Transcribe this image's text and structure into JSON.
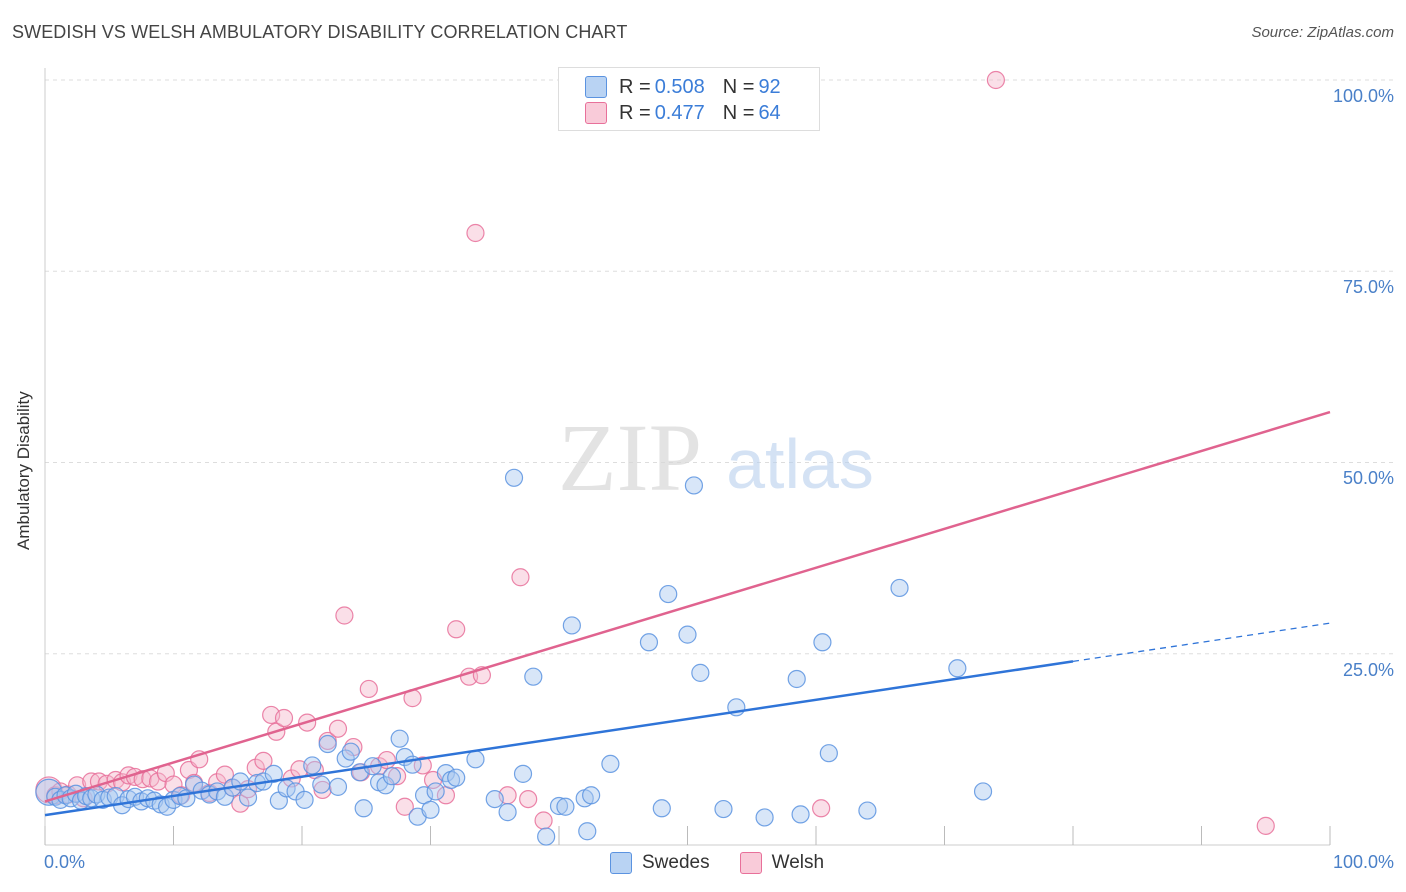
{
  "header": {
    "title": "SWEDISH VS WELSH AMBULATORY DISABILITY CORRELATION CHART",
    "source": "Source: ZipAtlas.com"
  },
  "watermark": {
    "zip": "ZIP",
    "atlas": "atlas"
  },
  "colors": {
    "swedes": "#5b93e0",
    "swedes_fill": "#a8c8f0",
    "welsh": "#e8709a",
    "welsh_fill": "#f4b8cc",
    "axis_text": "#4a80c8",
    "grid": "#dddddd"
  },
  "legend": {
    "rows": [
      {
        "r_label": "R =",
        "r_value": "0.508",
        "n_label": "N =",
        "n_value": "92"
      },
      {
        "r_label": "R =",
        "r_value": "0.477",
        "n_label": "N =",
        "n_value": "64"
      }
    ],
    "bottom": [
      "Swedes",
      "Welsh"
    ]
  },
  "chart_data": {
    "type": "scatter",
    "title": "SWEDISH VS WELSH AMBULATORY DISABILITY CORRELATION CHART",
    "xlabel": "",
    "ylabel": "Ambulatory Disability",
    "xlim": [
      0,
      100
    ],
    "ylim": [
      0,
      100
    ],
    "x_tick_labels": [
      "0.0%",
      "100.0%"
    ],
    "y_tick_labels": [
      "100.0%",
      "75.0%",
      "50.0%",
      "25.0%"
    ],
    "grid": true,
    "legend_position": "top-center",
    "series": [
      {
        "name": "Swedes",
        "r": 0.508,
        "n": 92,
        "trend": {
          "x0": 0,
          "y0": 3.9,
          "x1": 80,
          "y1": 24.0,
          "dashed_to_x": 100,
          "dashed_to_y": 29.0
        },
        "points": [
          [
            0.3,
            6.9
          ],
          [
            0.8,
            6.3
          ],
          [
            1.2,
            5.9
          ],
          [
            1.6,
            6.5
          ],
          [
            2.0,
            6.1
          ],
          [
            2.4,
            6.7
          ],
          [
            2.8,
            5.8
          ],
          [
            3.2,
            6.4
          ],
          [
            3.6,
            6.1
          ],
          [
            4.0,
            6.6
          ],
          [
            4.5,
            5.9
          ],
          [
            5.0,
            6.2
          ],
          [
            5.5,
            6.4
          ],
          [
            6.0,
            5.2
          ],
          [
            6.5,
            6.0
          ],
          [
            7.0,
            6.3
          ],
          [
            7.5,
            5.7
          ],
          [
            8.0,
            6.1
          ],
          [
            8.5,
            5.8
          ],
          [
            9.0,
            5.3
          ],
          [
            9.5,
            5.0
          ],
          [
            10.0,
            5.9
          ],
          [
            10.5,
            6.4
          ],
          [
            11.0,
            6.1
          ],
          [
            11.6,
            7.9
          ],
          [
            12.2,
            7.1
          ],
          [
            12.8,
            6.6
          ],
          [
            13.4,
            7.0
          ],
          [
            14.0,
            6.3
          ],
          [
            14.6,
            7.5
          ],
          [
            15.2,
            8.3
          ],
          [
            15.8,
            6.2
          ],
          [
            16.5,
            8.1
          ],
          [
            17.0,
            8.3
          ],
          [
            17.8,
            9.3
          ],
          [
            18.2,
            5.8
          ],
          [
            18.8,
            7.4
          ],
          [
            19.5,
            7.0
          ],
          [
            20.2,
            5.9
          ],
          [
            20.8,
            10.4
          ],
          [
            21.5,
            7.9
          ],
          [
            22.0,
            13.2
          ],
          [
            22.8,
            7.6
          ],
          [
            23.4,
            11.3
          ],
          [
            23.8,
            12.2
          ],
          [
            24.5,
            9.5
          ],
          [
            24.8,
            4.8
          ],
          [
            25.5,
            10.3
          ],
          [
            26.0,
            8.2
          ],
          [
            26.5,
            7.8
          ],
          [
            27.0,
            9.0
          ],
          [
            27.6,
            13.9
          ],
          [
            28.0,
            11.5
          ],
          [
            28.6,
            10.5
          ],
          [
            29.0,
            3.7
          ],
          [
            29.5,
            6.5
          ],
          [
            30.0,
            4.6
          ],
          [
            30.4,
            7.0
          ],
          [
            31.2,
            9.4
          ],
          [
            31.6,
            8.5
          ],
          [
            32.0,
            8.8
          ],
          [
            33.5,
            11.2
          ],
          [
            35.0,
            6.0
          ],
          [
            36.0,
            4.3
          ],
          [
            36.5,
            48.0
          ],
          [
            37.2,
            9.3
          ],
          [
            38.0,
            22.0
          ],
          [
            39.0,
            1.1
          ],
          [
            40.0,
            5.1
          ],
          [
            40.5,
            5.0
          ],
          [
            41.0,
            28.7
          ],
          [
            42.0,
            6.1
          ],
          [
            42.2,
            1.8
          ],
          [
            44.0,
            10.6
          ],
          [
            47.0,
            26.5
          ],
          [
            48.0,
            4.8
          ],
          [
            48.5,
            32.8
          ],
          [
            50.0,
            27.5
          ],
          [
            51.0,
            22.5
          ],
          [
            50.5,
            47.0
          ],
          [
            52.8,
            4.7
          ],
          [
            53.8,
            18.0
          ],
          [
            56.0,
            3.6
          ],
          [
            58.5,
            21.7
          ],
          [
            58.8,
            4.0
          ],
          [
            60.5,
            26.5
          ],
          [
            66.5,
            33.6
          ],
          [
            71.0,
            23.1
          ],
          [
            73.0,
            7.0
          ],
          [
            64.0,
            4.5
          ],
          [
            61.0,
            12.0
          ],
          [
            42.5,
            6.5
          ]
        ]
      },
      {
        "name": "Welsh",
        "r": 0.477,
        "n": 64,
        "trend": {
          "x0": 0,
          "y0": 5.7,
          "x1": 100,
          "y1": 56.6
        },
        "points": [
          [
            0.3,
            7.2
          ],
          [
            0.8,
            6.5
          ],
          [
            1.2,
            7.0
          ],
          [
            1.8,
            6.6
          ],
          [
            2.5,
            7.8
          ],
          [
            3.0,
            6.1
          ],
          [
            3.6,
            8.3
          ],
          [
            4.2,
            8.3
          ],
          [
            4.8,
            8.0
          ],
          [
            5.5,
            8.5
          ],
          [
            6.0,
            8.2
          ],
          [
            6.5,
            9.1
          ],
          [
            7.0,
            8.9
          ],
          [
            7.6,
            8.6
          ],
          [
            8.2,
            8.7
          ],
          [
            8.8,
            8.3
          ],
          [
            9.4,
            9.4
          ],
          [
            10.0,
            7.9
          ],
          [
            10.6,
            6.5
          ],
          [
            11.2,
            9.8
          ],
          [
            11.6,
            8.1
          ],
          [
            12.0,
            11.2
          ],
          [
            12.8,
            6.8
          ],
          [
            13.4,
            8.2
          ],
          [
            14.0,
            9.2
          ],
          [
            14.6,
            7.5
          ],
          [
            15.2,
            5.4
          ],
          [
            15.8,
            7.3
          ],
          [
            16.4,
            10.1
          ],
          [
            17.0,
            11.0
          ],
          [
            17.6,
            17.0
          ],
          [
            18.0,
            14.8
          ],
          [
            18.6,
            16.6
          ],
          [
            19.2,
            8.7
          ],
          [
            19.8,
            9.9
          ],
          [
            20.4,
            16.0
          ],
          [
            21.0,
            9.8
          ],
          [
            21.6,
            7.2
          ],
          [
            22.0,
            13.6
          ],
          [
            22.8,
            15.2
          ],
          [
            23.3,
            30.0
          ],
          [
            24.0,
            12.8
          ],
          [
            24.6,
            9.5
          ],
          [
            25.2,
            20.4
          ],
          [
            26.0,
            10.3
          ],
          [
            26.6,
            11.1
          ],
          [
            27.4,
            9.0
          ],
          [
            28.0,
            5.0
          ],
          [
            28.6,
            19.2
          ],
          [
            29.4,
            10.4
          ],
          [
            30.2,
            8.5
          ],
          [
            31.2,
            6.5
          ],
          [
            32.0,
            28.2
          ],
          [
            33.0,
            22.0
          ],
          [
            34.0,
            22.2
          ],
          [
            33.5,
            80.0
          ],
          [
            37.0,
            35.0
          ],
          [
            37.6,
            6.0
          ],
          [
            38.8,
            3.2
          ],
          [
            54.2,
            100.0
          ],
          [
            74.0,
            100.0
          ],
          [
            60.4,
            4.8
          ],
          [
            95.0,
            2.5
          ],
          [
            36.0,
            6.5
          ]
        ]
      }
    ]
  }
}
